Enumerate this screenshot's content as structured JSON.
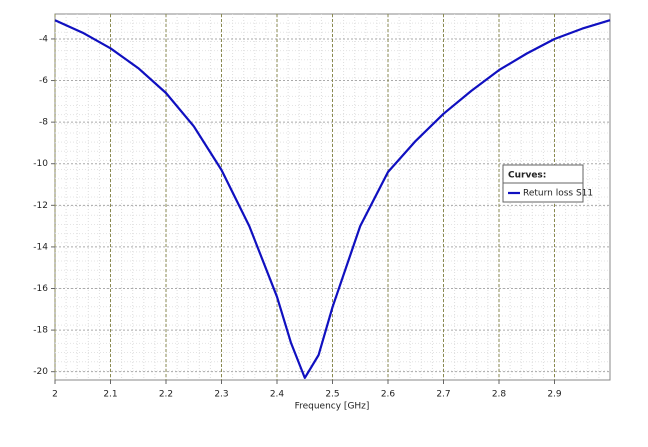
{
  "chart_data": {
    "type": "line",
    "x_label": "Frequency [GHz]",
    "x": [
      2.0,
      2.05,
      2.1,
      2.15,
      2.2,
      2.25,
      2.3,
      2.35,
      2.4,
      2.425,
      2.45,
      2.475,
      2.5,
      2.55,
      2.6,
      2.65,
      2.7,
      2.75,
      2.8,
      2.85,
      2.9,
      2.95,
      3.0
    ],
    "series": [
      {
        "name": "Return loss S11",
        "color": "#1010c0",
        "values": [
          -3.1,
          -3.7,
          -4.45,
          -5.4,
          -6.6,
          -8.2,
          -10.3,
          -13.0,
          -16.4,
          -18.6,
          -20.3,
          -19.2,
          -16.9,
          -13.0,
          -10.4,
          -8.9,
          -7.6,
          -6.5,
          -5.5,
          -4.7,
          -4.0,
          -3.5,
          -3.1
        ]
      }
    ],
    "legend_title": "Curves:",
    "xlim": [
      2,
      3
    ],
    "xticks": [
      2,
      2.1,
      2.2,
      2.3,
      2.4,
      2.5,
      2.6,
      2.7,
      2.8,
      2.9
    ],
    "ylim": [
      -20.4,
      -2.8
    ],
    "yticks": [
      -4,
      -6,
      -8,
      -10,
      -12,
      -14,
      -16,
      -18,
      -20
    ],
    "grid": true
  }
}
